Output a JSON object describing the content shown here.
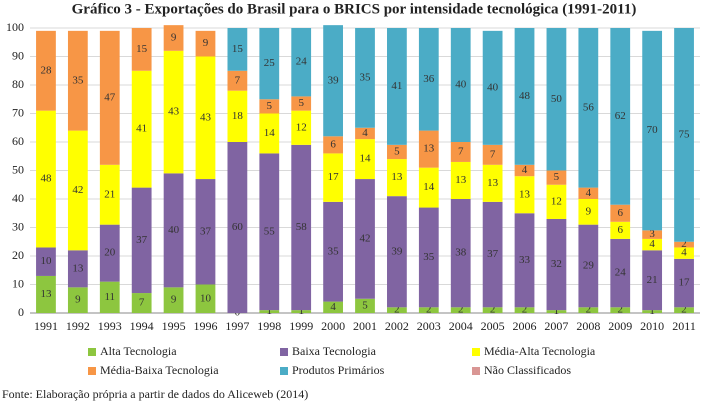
{
  "chart_data": {
    "type": "bar",
    "stacked": true,
    "title": "Gráfico 3 - Exportações do Brasil para o BRICS por intensidade tecnológica (1991-2011)",
    "source": "Fonte: Elaboração própria a partir de dados do Aliceweb (2014)",
    "categories": [
      "1991",
      "1992",
      "1993",
      "1994",
      "1995",
      "1996",
      "1997",
      "1998",
      "1999",
      "2000",
      "2001",
      "2002",
      "2003",
      "2004",
      "2005",
      "2006",
      "2007",
      "2008",
      "2009",
      "2010",
      "2011"
    ],
    "ylim": [
      0,
      100
    ],
    "yticks": [
      0,
      10,
      20,
      30,
      40,
      50,
      60,
      70,
      80,
      90,
      100
    ],
    "grid": true,
    "series": [
      {
        "name": "Alta Tecnologia",
        "color": "#8dc63f",
        "values": [
          13,
          9,
          11,
          7,
          9,
          10,
          0,
          1,
          1,
          4,
          5,
          2,
          2,
          2,
          2,
          2,
          1,
          2,
          2,
          1,
          2
        ]
      },
      {
        "name": "Baixa Tecnologia",
        "color": "#8064a2",
        "values": [
          10,
          13,
          20,
          37,
          40,
          37,
          60,
          55,
          58,
          35,
          42,
          39,
          35,
          38,
          37,
          33,
          32,
          29,
          24,
          21,
          17
        ]
      },
      {
        "name": "Média-Alta Tecnologia",
        "color": "#ffff00",
        "values": [
          48,
          42,
          21,
          41,
          43,
          43,
          18,
          14,
          12,
          17,
          14,
          13,
          14,
          13,
          13,
          13,
          12,
          9,
          6,
          4,
          4
        ]
      },
      {
        "name": "Média-Baixa Tecnologia",
        "color": "#f79646",
        "values": [
          28,
          35,
          47,
          15,
          9,
          9,
          7,
          5,
          5,
          6,
          4,
          5,
          13,
          7,
          7,
          4,
          5,
          4,
          6,
          3,
          2
        ]
      },
      {
        "name": "Produtos Primários",
        "color": "#4bacc6",
        "values": [
          null,
          null,
          null,
          null,
          null,
          null,
          15,
          25,
          24,
          39,
          35,
          41,
          36,
          40,
          40,
          48,
          50,
          56,
          62,
          70,
          75
        ]
      },
      {
        "name": "Não Classificados",
        "color": "#d99694",
        "values": [
          null,
          null,
          null,
          null,
          null,
          null,
          null,
          null,
          null,
          null,
          null,
          null,
          null,
          null,
          null,
          null,
          null,
          null,
          null,
          null,
          null
        ]
      }
    ]
  }
}
